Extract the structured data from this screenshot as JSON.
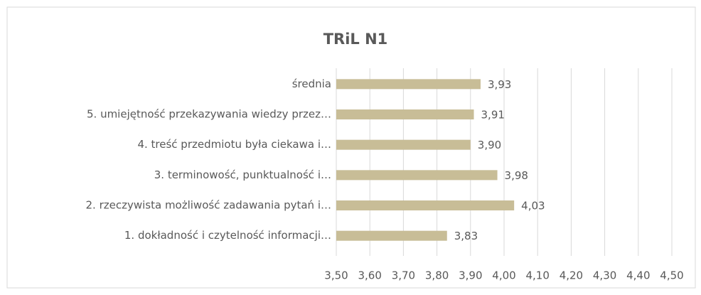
{
  "chart_data": {
    "type": "bar",
    "orientation": "horizontal",
    "title": "TRiL N1",
    "categories": [
      "średnia",
      "5. umiejętność przekazywania wiedzy przez…",
      "4. treść przedmiotu była ciekawa i…",
      "3. terminowość, punktualność i…",
      "2. rzeczywista możliwość zadawania pytań i…",
      "1. dokładność i czytelność informacji…"
    ],
    "values": [
      3.93,
      3.91,
      3.9,
      3.98,
      4.03,
      3.83
    ],
    "value_labels": [
      "3,93",
      "3,91",
      "3,90",
      "3,98",
      "4,03",
      "3,83"
    ],
    "color": "#c8bd97",
    "xlim": [
      3.5,
      4.5
    ],
    "xticks": [
      {
        "value": 3.5,
        "label": "3,50"
      },
      {
        "value": 3.6,
        "label": "3,60"
      },
      {
        "value": 3.7,
        "label": "3,70"
      },
      {
        "value": 3.8,
        "label": "3,80"
      },
      {
        "value": 3.9,
        "label": "3,90"
      },
      {
        "value": 4.0,
        "label": "4,00"
      },
      {
        "value": 4.1,
        "label": "4,10"
      },
      {
        "value": 4.2,
        "label": "4,20"
      },
      {
        "value": 4.3,
        "label": "4,30"
      },
      {
        "value": 4.4,
        "label": "4,40"
      },
      {
        "value": 4.5,
        "label": "4,50"
      }
    ],
    "grid": true
  }
}
